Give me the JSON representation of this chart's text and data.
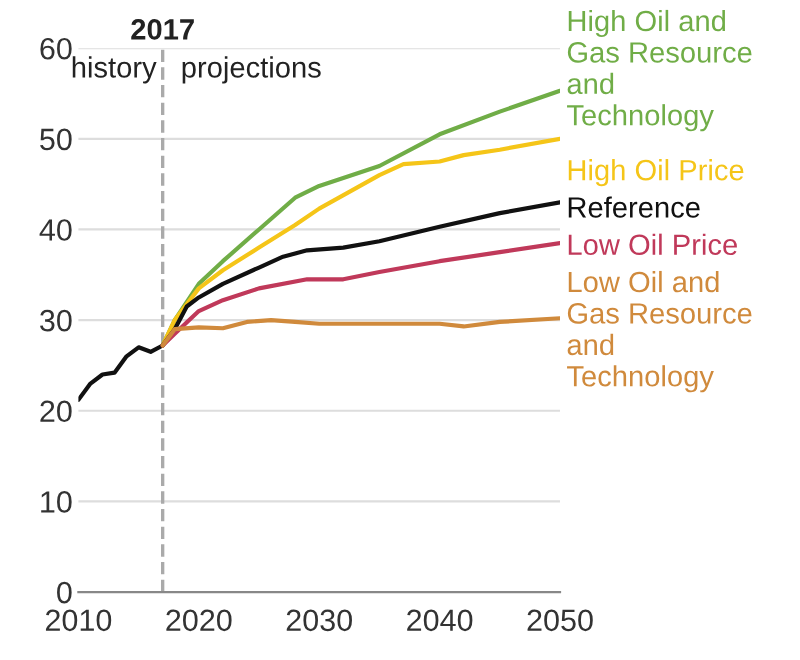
{
  "chart_data": {
    "type": "line",
    "xlim": [
      2010,
      2050
    ],
    "ylim": [
      0,
      60
    ],
    "xticks": [
      2010,
      2020,
      2030,
      2040,
      2050
    ],
    "yticks": [
      0,
      10,
      20,
      30,
      40,
      50,
      60
    ],
    "grid": "y",
    "legend": false,
    "marker": "none",
    "line_style": "solid",
    "ref_lines": [
      {
        "axis": "x",
        "value": 2017,
        "label": "2017",
        "color": "#aaaaaa",
        "line_style": "dashed"
      }
    ],
    "annotations": [
      "history",
      "projections"
    ],
    "series": [
      {
        "name": "High Oil and\nGas Resource\nand\nTechnology",
        "color": "#70ad47",
        "x": [
          2017,
          2018,
          2020,
          2022,
          2025,
          2028,
          2030,
          2035,
          2040,
          2045,
          2050
        ],
        "values": [
          27.2,
          30,
          34,
          36.5,
          40,
          43.5,
          44.8,
          47,
          50.5,
          53,
          55.3
        ]
      },
      {
        "name": "High Oil Price",
        "color": "#f5c518",
        "x": [
          2017,
          2018,
          2020,
          2022,
          2025,
          2028,
          2030,
          2035,
          2037,
          2040,
          2042,
          2045,
          2050
        ],
        "values": [
          27.2,
          30,
          33.5,
          35.5,
          38,
          40.5,
          42.3,
          46,
          47.2,
          47.5,
          48.2,
          48.8,
          50
        ]
      },
      {
        "name": "Reference",
        "color": "#111111",
        "x": [
          2010,
          2011,
          2012,
          2013,
          2014,
          2015,
          2016,
          2017,
          2018,
          2019,
          2020,
          2022,
          2025,
          2027,
          2029,
          2032,
          2035,
          2040,
          2045,
          2050
        ],
        "values": [
          21.2,
          23,
          24,
          24.2,
          26,
          27,
          26.5,
          27.2,
          29,
          31.5,
          32.5,
          34,
          35.8,
          37,
          37.7,
          38,
          38.7,
          40.3,
          41.8,
          43
        ]
      },
      {
        "name": "Low Oil Price",
        "color": "#c0395a",
        "x": [
          2017,
          2018,
          2020,
          2022,
          2025,
          2029,
          2032,
          2035,
          2040,
          2045,
          2050
        ],
        "values": [
          27.2,
          28.5,
          31,
          32.2,
          33.5,
          34.5,
          34.5,
          35.3,
          36.5,
          37.5,
          38.5
        ]
      },
      {
        "name": "Low Oil and\nGas Resource\nand\nTechnology",
        "color": "#d08a3c",
        "x": [
          2017,
          2018,
          2020,
          2022,
          2024,
          2026,
          2028,
          2030,
          2035,
          2040,
          2042,
          2045,
          2050
        ],
        "values": [
          27.2,
          29,
          29.2,
          29.1,
          29.8,
          30,
          29.8,
          29.6,
          29.6,
          29.6,
          29.3,
          29.8,
          30.2
        ]
      }
    ]
  }
}
